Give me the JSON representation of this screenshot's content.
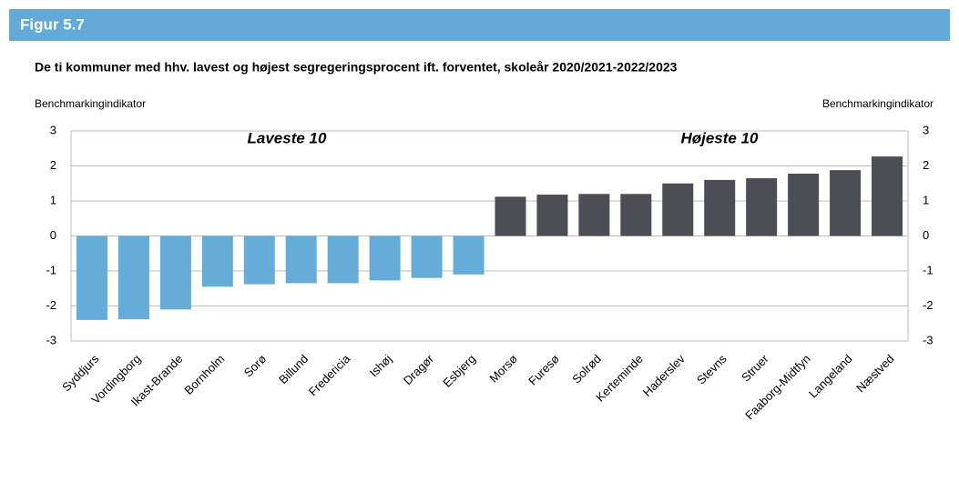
{
  "header": {
    "title": "Figur 5.7"
  },
  "chart_data": {
    "type": "bar",
    "title": "De ti kommuner med hhv. lavest og højest segregeringsprocent ift. forventet, skoleår 2020/2021-2022/2023",
    "ylabel": "Benchmarkingindikator",
    "y2label": "Benchmarkingindikator",
    "annotations": [
      "Laveste 10",
      "Højeste 10"
    ],
    "categories": [
      "Syddjurs",
      "Vordingborg",
      "Ikast-Brande",
      "Bornholm",
      "Sorø",
      "Billund",
      "Fredericia",
      "Ishøj",
      "Dragør",
      "Esbjerg",
      "Morsø",
      "Furesø",
      "Solrød",
      "Kerteminde",
      "Haderslev",
      "Stevns",
      "Struer",
      "Faaborg-Midtfyn",
      "Langeland",
      "Næstved"
    ],
    "values": [
      -2.4,
      -2.38,
      -2.1,
      -1.45,
      -1.38,
      -1.35,
      -1.35,
      -1.27,
      -1.2,
      -1.1,
      1.12,
      1.18,
      1.2,
      1.2,
      1.5,
      1.6,
      1.65,
      1.78,
      1.88,
      2.27
    ],
    "colors": [
      "#65acd9",
      "#65acd9",
      "#65acd9",
      "#65acd9",
      "#65acd9",
      "#65acd9",
      "#65acd9",
      "#65acd9",
      "#65acd9",
      "#65acd9",
      "#4c4d55",
      "#4c4d55",
      "#4c4d55",
      "#4c4d55",
      "#4c4d55",
      "#4c4d55",
      "#4c4d55",
      "#4c4d55",
      "#4c4d55",
      "#4c4d55"
    ],
    "ylim": [
      -3,
      3
    ],
    "yticks": [
      -3,
      -2,
      -1,
      0,
      1,
      2,
      3
    ],
    "y2lim": [
      -3,
      3
    ],
    "y2ticks": [
      -3,
      -2,
      -1,
      0,
      1,
      2,
      3
    ],
    "grid": true
  }
}
